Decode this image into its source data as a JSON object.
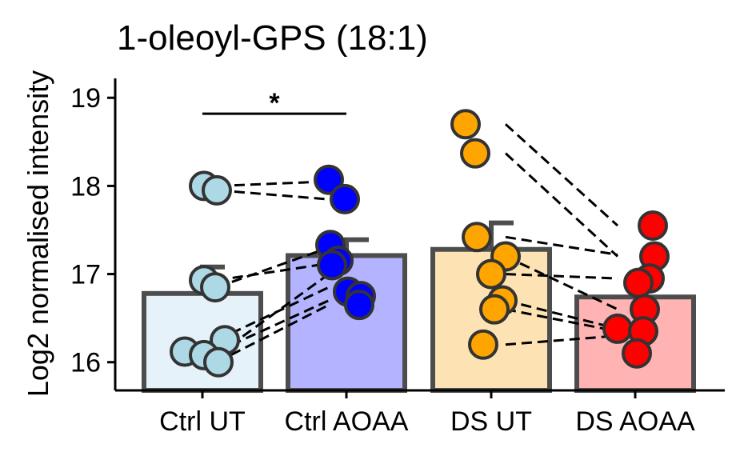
{
  "chart_data": {
    "type": "bar",
    "title": "1-oleoyl-GPS (18:1)",
    "xlabel": "",
    "ylabel": "Log2 normalised intensity",
    "ylim": [
      15.68,
      19.22
    ],
    "yticks": [
      16,
      17,
      18,
      19
    ],
    "grid": false,
    "legend": "none",
    "categories": [
      "Ctrl UT",
      "Ctrl AOAA",
      "DS UT",
      "DS AOAA"
    ],
    "bar_fill": [
      "#E6F2F9",
      "#B3B3FF",
      "#FDE3B3",
      "#FFB3B3"
    ],
    "point_fill": [
      "#ADD8E6",
      "#0000FF",
      "#FFA500",
      "#FF0000"
    ],
    "means": [
      16.78,
      17.21,
      17.28,
      16.74
    ],
    "errors": [
      0.3,
      0.18,
      0.3,
      0.2
    ],
    "points": [
      [
        18.0,
        17.95,
        16.93,
        16.85,
        16.25,
        16.12,
        16.08,
        16.0
      ],
      [
        18.07,
        17.85,
        17.33,
        17.15,
        17.1,
        16.8,
        16.75,
        16.65
      ],
      [
        18.7,
        18.37,
        17.42,
        17.2,
        17.0,
        16.7,
        16.6,
        16.2
      ],
      [
        17.55,
        17.2,
        16.95,
        16.9,
        16.6,
        16.38,
        16.35,
        16.1
      ]
    ],
    "pairs": [
      [
        [
          18.0,
          18.05
        ],
        [
          17.95,
          17.85
        ]
      ],
      [
        [
          16.93,
          17.12
        ],
        [
          16.85,
          17.3
        ],
        [
          16.25,
          16.85
        ],
        [
          16.12,
          16.7
        ],
        [
          16.08,
          17.0
        ],
        [
          16.0,
          16.65
        ]
      ],
      [
        [
          18.7,
          17.55
        ],
        [
          18.37,
          17.2
        ],
        [
          17.42,
          17.22
        ],
        [
          17.2,
          16.6
        ],
        [
          17.0,
          16.95
        ],
        [
          16.7,
          16.38
        ],
        [
          16.6,
          16.35
        ],
        [
          16.2,
          16.3
        ]
      ]
    ],
    "significance": [
      {
        "from": "Ctrl UT",
        "to": "Ctrl AOAA",
        "y": 18.82,
        "label": "*"
      }
    ]
  }
}
